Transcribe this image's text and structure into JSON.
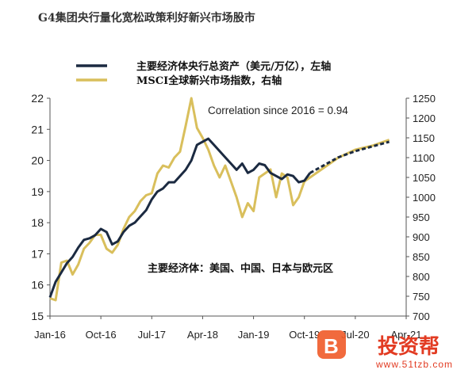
{
  "chart_data": {
    "type": "line",
    "title": "G4集团央行量化宽松政策利好新兴市场股市",
    "annotation": "Correlation since 2016 = 0.94",
    "note": "主要经济体：美国、中国、日本与欧元区",
    "legend_placement": "top-left",
    "grid": false,
    "x_range": [
      "2016-01",
      "2021-04"
    ],
    "x_ticks": [
      "Jan-16",
      "Oct-16",
      "Jul-17",
      "Apr-18",
      "Jan-19",
      "Oct-19",
      "Jul-20",
      "Apr-21"
    ],
    "y_left": {
      "ylim": [
        15,
        22
      ],
      "ticks": [
        "15",
        "16",
        "17",
        "18",
        "19",
        "20",
        "21",
        "22"
      ]
    },
    "y_right": {
      "ylim": [
        700,
        1250
      ],
      "ticks": [
        "700",
        "750",
        "800",
        "850",
        "900",
        "950",
        "1000",
        "1050",
        "1100",
        "1150",
        "1200",
        "1250"
      ]
    },
    "series": [
      {
        "name": "主要经济体央行总资产（美元/万亿），左轴",
        "axis": "left",
        "color": "#1b2a41",
        "projection_from": "2019-11",
        "points": [
          [
            "2016-01",
            15.6
          ],
          [
            "2016-02",
            16.1
          ],
          [
            "2016-03",
            16.4
          ],
          [
            "2016-04",
            16.7
          ],
          [
            "2016-05",
            16.9
          ],
          [
            "2016-06",
            17.2
          ],
          [
            "2016-07",
            17.45
          ],
          [
            "2016-08",
            17.5
          ],
          [
            "2016-09",
            17.6
          ],
          [
            "2016-10",
            17.8
          ],
          [
            "2016-11",
            17.7
          ],
          [
            "2016-12",
            17.3
          ],
          [
            "2017-01",
            17.4
          ],
          [
            "2017-02",
            17.7
          ],
          [
            "2017-03",
            17.9
          ],
          [
            "2017-04",
            18.0
          ],
          [
            "2017-05",
            18.2
          ],
          [
            "2017-06",
            18.4
          ],
          [
            "2017-07",
            18.75
          ],
          [
            "2017-08",
            19.0
          ],
          [
            "2017-09",
            19.1
          ],
          [
            "2017-10",
            19.3
          ],
          [
            "2017-11",
            19.3
          ],
          [
            "2017-12",
            19.5
          ],
          [
            "2018-01",
            19.7
          ],
          [
            "2018-02",
            20.0
          ],
          [
            "2018-03",
            20.5
          ],
          [
            "2018-04",
            20.6
          ],
          [
            "2018-05",
            20.7
          ],
          [
            "2018-06",
            20.5
          ],
          [
            "2018-07",
            20.3
          ],
          [
            "2018-08",
            20.1
          ],
          [
            "2018-09",
            19.9
          ],
          [
            "2018-10",
            19.7
          ],
          [
            "2018-11",
            19.9
          ],
          [
            "2018-12",
            19.6
          ],
          [
            "2019-01",
            19.7
          ],
          [
            "2019-02",
            19.9
          ],
          [
            "2019-03",
            19.85
          ],
          [
            "2019-04",
            19.6
          ],
          [
            "2019-05",
            19.5
          ],
          [
            "2019-06",
            19.4
          ],
          [
            "2019-07",
            19.55
          ],
          [
            "2019-08",
            19.5
          ],
          [
            "2019-09",
            19.3
          ],
          [
            "2019-10",
            19.35
          ],
          [
            "2019-11",
            19.6
          ],
          [
            "2020-01",
            19.8
          ],
          [
            "2020-04",
            20.1
          ],
          [
            "2020-07",
            20.3
          ],
          [
            "2020-10",
            20.45
          ],
          [
            "2021-01",
            20.6
          ]
        ]
      },
      {
        "name": "MSCI全球新兴市场指数，右轴",
        "axis": "right",
        "color": "#d9bf5c",
        "points": [
          [
            "2016-01",
            745
          ],
          [
            "2016-02",
            740
          ],
          [
            "2016-03",
            835
          ],
          [
            "2016-04",
            840
          ],
          [
            "2016-05",
            805
          ],
          [
            "2016-06",
            830
          ],
          [
            "2016-07",
            870
          ],
          [
            "2016-08",
            885
          ],
          [
            "2016-09",
            905
          ],
          [
            "2016-10",
            905
          ],
          [
            "2016-11",
            870
          ],
          [
            "2016-12",
            860
          ],
          [
            "2017-01",
            880
          ],
          [
            "2017-02",
            920
          ],
          [
            "2017-03",
            950
          ],
          [
            "2017-04",
            965
          ],
          [
            "2017-05",
            990
          ],
          [
            "2017-06",
            1005
          ],
          [
            "2017-07",
            1010
          ],
          [
            "2017-08",
            1060
          ],
          [
            "2017-09",
            1080
          ],
          [
            "2017-10",
            1075
          ],
          [
            "2017-11",
            1100
          ],
          [
            "2017-12",
            1115
          ],
          [
            "2018-01",
            1180
          ],
          [
            "2018-02",
            1250
          ],
          [
            "2018-03",
            1175
          ],
          [
            "2018-04",
            1150
          ],
          [
            "2018-05",
            1120
          ],
          [
            "2018-06",
            1080
          ],
          [
            "2018-07",
            1050
          ],
          [
            "2018-08",
            1080
          ],
          [
            "2018-09",
            1040
          ],
          [
            "2018-10",
            1000
          ],
          [
            "2018-11",
            950
          ],
          [
            "2018-12",
            985
          ],
          [
            "2019-01",
            965
          ],
          [
            "2019-02",
            1050
          ],
          [
            "2019-03",
            1060
          ],
          [
            "2019-04",
            1070
          ],
          [
            "2019-05",
            1000
          ],
          [
            "2019-06",
            1060
          ],
          [
            "2019-07",
            1050
          ],
          [
            "2019-08",
            980
          ],
          [
            "2019-09",
            1000
          ],
          [
            "2019-10",
            1040
          ],
          [
            "2019-11",
            1050
          ],
          [
            "2020-01",
            1070
          ],
          [
            "2020-04",
            1100
          ],
          [
            "2020-07",
            1120
          ],
          [
            "2020-10",
            1130
          ],
          [
            "2021-01",
            1145
          ]
        ]
      }
    ]
  },
  "watermark": {
    "text": "投资帮",
    "url": "www.51tzb.com",
    "logo_letter": "B",
    "color": "#e23b22"
  }
}
